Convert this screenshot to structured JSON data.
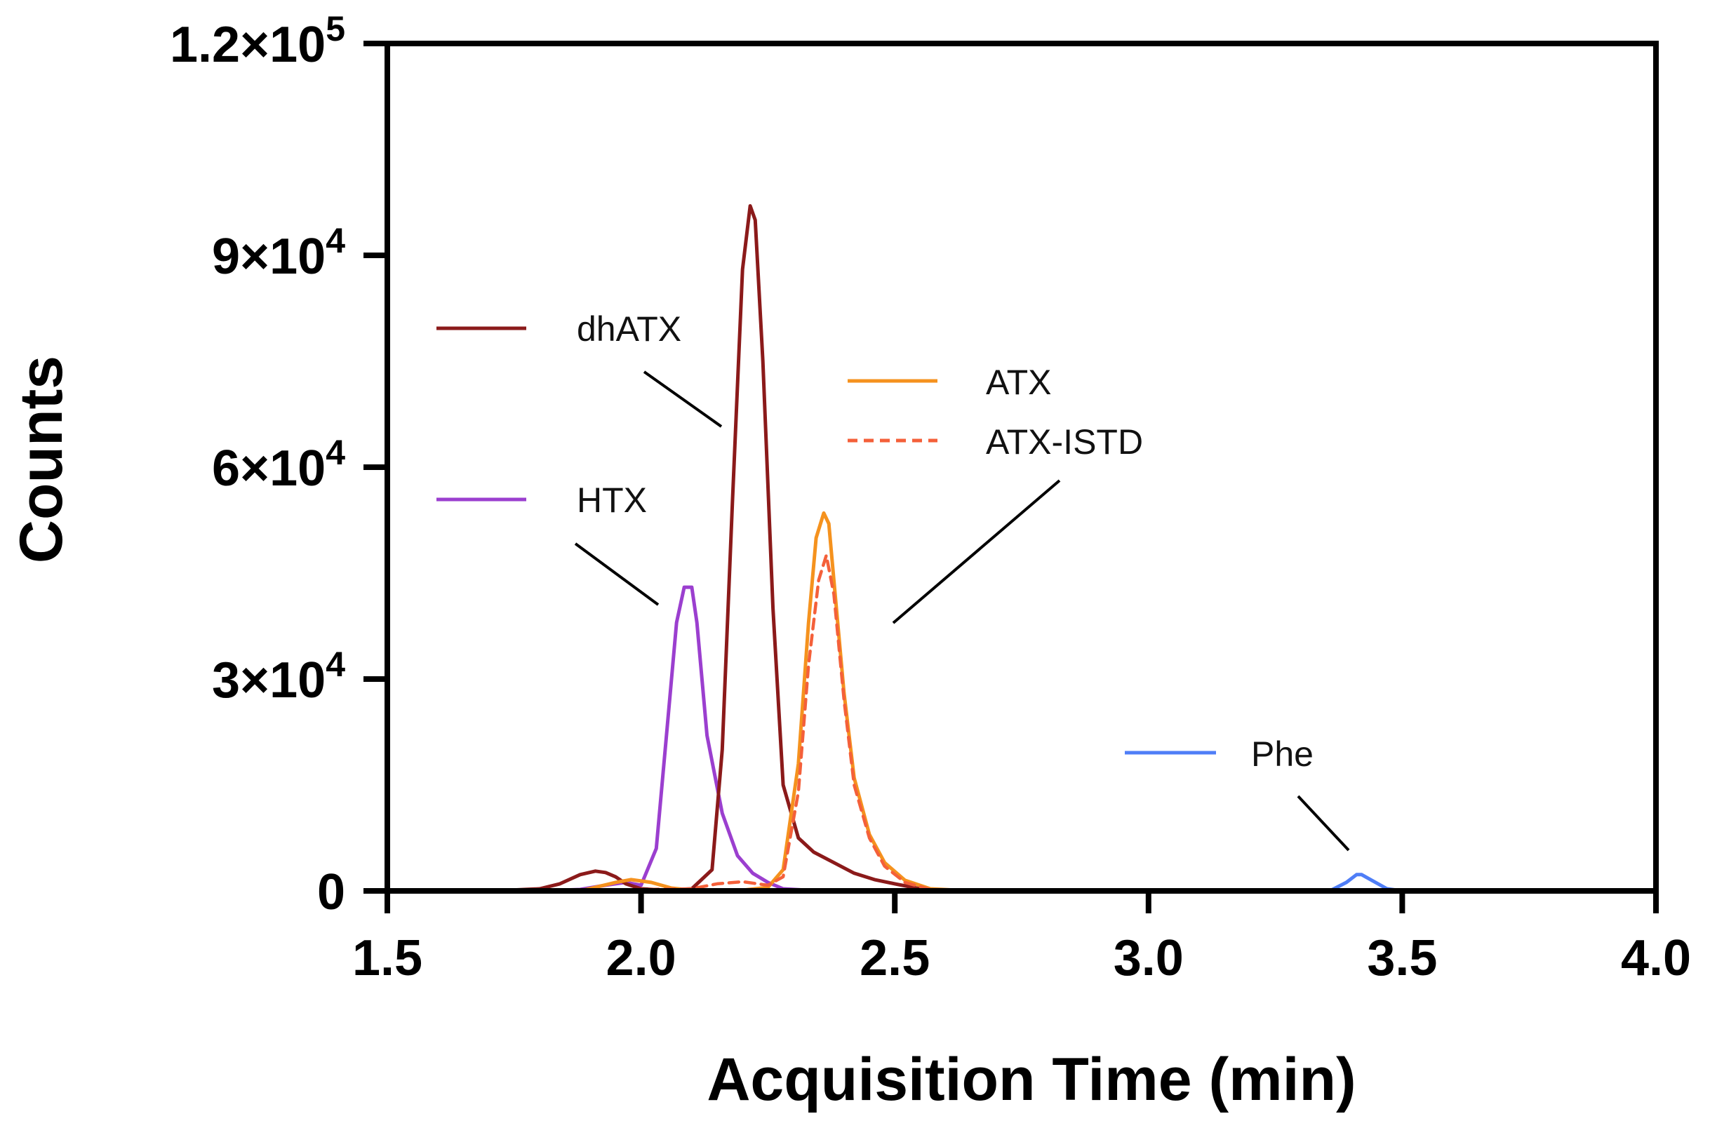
{
  "chart_data": {
    "type": "line",
    "title": "",
    "xlabel": "Acquisition Time (min)",
    "ylabel": "Counts",
    "xlim": [
      1.5,
      4.0
    ],
    "ylim": [
      0,
      120000
    ],
    "grid": false,
    "x_ticks": [
      {
        "value": 1.5,
        "label": "1.5"
      },
      {
        "value": 2.0,
        "label": "2.0"
      },
      {
        "value": 2.5,
        "label": "2.5"
      },
      {
        "value": 3.0,
        "label": "3.0"
      },
      {
        "value": 3.5,
        "label": "3.5"
      },
      {
        "value": 4.0,
        "label": "4.0"
      }
    ],
    "y_ticks": [
      {
        "value": 0,
        "mantissa": "0",
        "exponent": ""
      },
      {
        "value": 30000,
        "mantissa": "3×10",
        "exponent": "4"
      },
      {
        "value": 60000,
        "mantissa": "6×10",
        "exponent": "4"
      },
      {
        "value": 90000,
        "mantissa": "9×10",
        "exponent": "4"
      },
      {
        "value": 120000,
        "mantissa": "1.2×10",
        "exponent": "5"
      }
    ],
    "series": [
      {
        "name": "HTX",
        "color": "#9b3fcf",
        "dash": false,
        "x": [
          1.59,
          1.8,
          1.88,
          1.93,
          1.97,
          2.0,
          2.03,
          2.05,
          2.07,
          2.085,
          2.1,
          2.11,
          2.13,
          2.16,
          2.19,
          2.22,
          2.25,
          2.28,
          2.35,
          2.5,
          2.75
        ],
        "y": [
          0,
          0,
          200,
          800,
          1200,
          800,
          6000,
          22000,
          38000,
          43000,
          43000,
          38000,
          22000,
          11000,
          5000,
          2500,
          1200,
          300,
          0,
          0,
          0
        ]
      },
      {
        "name": "dhATX",
        "color": "#8b1a1a",
        "dash": false,
        "x": [
          1.71,
          1.8,
          1.84,
          1.88,
          1.91,
          1.93,
          1.95,
          1.97,
          2.0,
          2.05,
          2.1,
          2.14,
          2.16,
          2.18,
          2.2,
          2.215,
          2.225,
          2.24,
          2.26,
          2.28,
          2.31,
          2.34,
          2.38,
          2.42,
          2.46,
          2.5,
          2.55,
          2.6,
          2.7,
          2.8
        ],
        "y": [
          0,
          300,
          1000,
          2300,
          2800,
          2600,
          2000,
          1000,
          300,
          100,
          300,
          3000,
          20000,
          55000,
          88000,
          97000,
          95000,
          75000,
          40000,
          15000,
          7500,
          5500,
          4000,
          2500,
          1600,
          1000,
          300,
          0,
          0,
          0
        ]
      },
      {
        "name": "ATX",
        "color": "#f5921e",
        "dash": false,
        "x": [
          1.88,
          1.95,
          1.98,
          2.02,
          2.06,
          2.1,
          2.15,
          2.2,
          2.25,
          2.28,
          2.31,
          2.33,
          2.345,
          2.36,
          2.37,
          2.38,
          2.4,
          2.42,
          2.45,
          2.48,
          2.52,
          2.57,
          2.65,
          2.86
        ],
        "y": [
          0,
          1200,
          1600,
          1200,
          400,
          100,
          0,
          100,
          500,
          3000,
          18000,
          38000,
          50000,
          53500,
          52000,
          44000,
          28000,
          16000,
          8000,
          4000,
          1500,
          300,
          0,
          0
        ]
      },
      {
        "name": "ATX-ISTD",
        "color": "#f4603a",
        "dash": true,
        "x": [
          1.92,
          2.0,
          2.1,
          2.15,
          2.2,
          2.25,
          2.28,
          2.31,
          2.33,
          2.35,
          2.365,
          2.38,
          2.4,
          2.42,
          2.45,
          2.48,
          2.52,
          2.57,
          2.65
        ],
        "y": [
          0,
          200,
          300,
          1000,
          1300,
          800,
          2000,
          14000,
          32000,
          44000,
          47500,
          42000,
          27000,
          15000,
          7500,
          3500,
          1200,
          200,
          0
        ]
      },
      {
        "name": "Phe",
        "color": "#4f7ef7",
        "dash": false,
        "x": [
          2.86,
          3.0,
          3.3,
          3.36,
          3.39,
          3.41,
          3.42,
          3.44,
          3.47,
          3.5,
          3.8,
          4.0
        ],
        "y": [
          0,
          0,
          0,
          100,
          1200,
          2300,
          2300,
          1500,
          300,
          0,
          0,
          0
        ]
      }
    ],
    "legend": [
      {
        "series": "dhATX",
        "label": "dhATX"
      },
      {
        "series": "HTX",
        "label": "HTX"
      },
      {
        "series": "ATX",
        "label": "ATX"
      },
      {
        "series": "ATX-ISTD",
        "label": "ATX-ISTD"
      },
      {
        "series": "Phe",
        "label": "Phe"
      }
    ]
  }
}
